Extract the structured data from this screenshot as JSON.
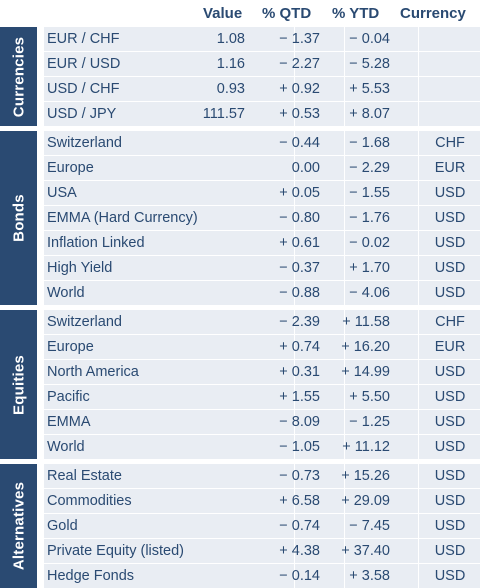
{
  "header": {
    "value": "Value",
    "qtd": "% QTD",
    "ytd": "% YTD",
    "currency": "Currency"
  },
  "sections": [
    {
      "label": "Currencies",
      "rows": [
        {
          "name": "EUR / CHF",
          "value": "1.08",
          "qtd": "− 1.37",
          "ytd": "− 0.04",
          "currency": ""
        },
        {
          "name": "EUR / USD",
          "value": "1.16",
          "qtd": "− 2.27",
          "ytd": "− 5.28",
          "currency": ""
        },
        {
          "name": "USD / CHF",
          "value": "0.93",
          "qtd": "+ 0.92",
          "ytd": "+ 5.53",
          "currency": ""
        },
        {
          "name": "USD / JPY",
          "value": "111.57",
          "qtd": "+ 0.53",
          "ytd": "+ 8.07",
          "currency": ""
        }
      ]
    },
    {
      "label": "Bonds",
      "rows": [
        {
          "name": "Switzerland",
          "value": "",
          "qtd": "− 0.44",
          "ytd": "− 1.68",
          "currency": "CHF"
        },
        {
          "name": "Europe",
          "value": "",
          "qtd": "0.00",
          "ytd": "− 2.29",
          "currency": "EUR"
        },
        {
          "name": "USA",
          "value": "",
          "qtd": "+ 0.05",
          "ytd": "− 1.55",
          "currency": "USD"
        },
        {
          "name": "EMMA (Hard Currency)",
          "value": "",
          "qtd": "− 0.80",
          "ytd": "− 1.76",
          "currency": "USD"
        },
        {
          "name": "Inflation Linked",
          "value": "",
          "qtd": "+ 0.61",
          "ytd": "− 0.02",
          "currency": "USD"
        },
        {
          "name": "High Yield",
          "value": "",
          "qtd": "− 0.37",
          "ytd": "+ 1.70",
          "currency": "USD"
        },
        {
          "name": "World",
          "value": "",
          "qtd": "− 0.88",
          "ytd": "− 4.06",
          "currency": "USD"
        }
      ]
    },
    {
      "label": "Equities",
      "rows": [
        {
          "name": "Switzerland",
          "value": "",
          "qtd": "− 2.39",
          "ytd": "+ 11.58",
          "currency": "CHF"
        },
        {
          "name": "Europe",
          "value": "",
          "qtd": "+ 0.74",
          "ytd": "+ 16.20",
          "currency": "EUR"
        },
        {
          "name": "North America",
          "value": "",
          "qtd": "+ 0.31",
          "ytd": "+ 14.99",
          "currency": "USD"
        },
        {
          "name": "Pacific",
          "value": "",
          "qtd": "+ 1.55",
          "ytd": "+ 5.50",
          "currency": "USD"
        },
        {
          "name": "EMMA",
          "value": "",
          "qtd": "− 8.09",
          "ytd": "− 1.25",
          "currency": "USD"
        },
        {
          "name": "World",
          "value": "",
          "qtd": "− 1.05",
          "ytd": "+ 11.12",
          "currency": "USD"
        }
      ]
    },
    {
      "label": "Alternatives",
      "rows": [
        {
          "name": "Real Estate",
          "value": "",
          "qtd": "− 0.73",
          "ytd": "+ 15.26",
          "currency": "USD"
        },
        {
          "name": "Commodities",
          "value": "",
          "qtd": "+ 6.58",
          "ytd": "+ 29.09",
          "currency": "USD"
        },
        {
          "name": "Gold",
          "value": "",
          "qtd": "− 0.74",
          "ytd": "− 7.45",
          "currency": "USD"
        },
        {
          "name": "Private Equity (listed)",
          "value": "",
          "qtd": "+ 4.38",
          "ytd": "+ 37.40",
          "currency": "USD"
        },
        {
          "name": "Hedge Fonds",
          "value": "",
          "qtd": "− 0.14",
          "ytd": "+ 3.58",
          "currency": "USD"
        }
      ]
    }
  ]
}
